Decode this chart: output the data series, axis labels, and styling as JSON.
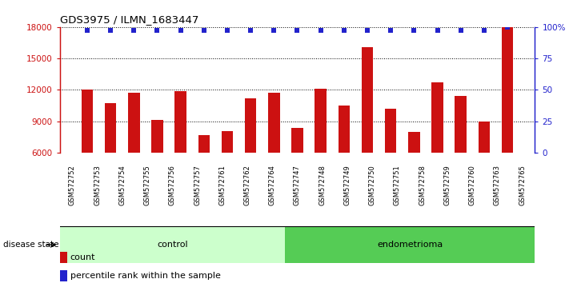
{
  "title": "GDS3975 / ILMN_1683447",
  "samples": [
    "GSM572752",
    "GSM572753",
    "GSM572754",
    "GSM572755",
    "GSM572756",
    "GSM572757",
    "GSM572761",
    "GSM572762",
    "GSM572764",
    "GSM572747",
    "GSM572748",
    "GSM572749",
    "GSM572750",
    "GSM572751",
    "GSM572758",
    "GSM572759",
    "GSM572760",
    "GSM572763",
    "GSM572765"
  ],
  "counts": [
    12000,
    10700,
    11700,
    9100,
    11900,
    7700,
    8100,
    11200,
    11700,
    8400,
    12100,
    10500,
    16100,
    10200,
    8000,
    12700,
    11400,
    9000,
    18000
  ],
  "percentiles": [
    97,
    97,
    97,
    97,
    97,
    97,
    97,
    97,
    97,
    97,
    97,
    97,
    97,
    97,
    97,
    97,
    97,
    97,
    100
  ],
  "control_count": 9,
  "endometrioma_count": 10,
  "ylim_left": [
    6000,
    18000
  ],
  "ylim_right": [
    0,
    100
  ],
  "yticks_left": [
    6000,
    9000,
    12000,
    15000,
    18000
  ],
  "yticks_right": [
    0,
    25,
    50,
    75,
    100
  ],
  "bar_color": "#cc1111",
  "percentile_color": "#2222cc",
  "control_color": "#ccffcc",
  "endometrioma_color": "#55cc55",
  "xtick_bg_color": "#cccccc",
  "legend_count_label": "count",
  "legend_pct_label": "percentile rank within the sample",
  "disease_state_label": "disease state",
  "control_label": "control",
  "endometrioma_label": "endometrioma"
}
